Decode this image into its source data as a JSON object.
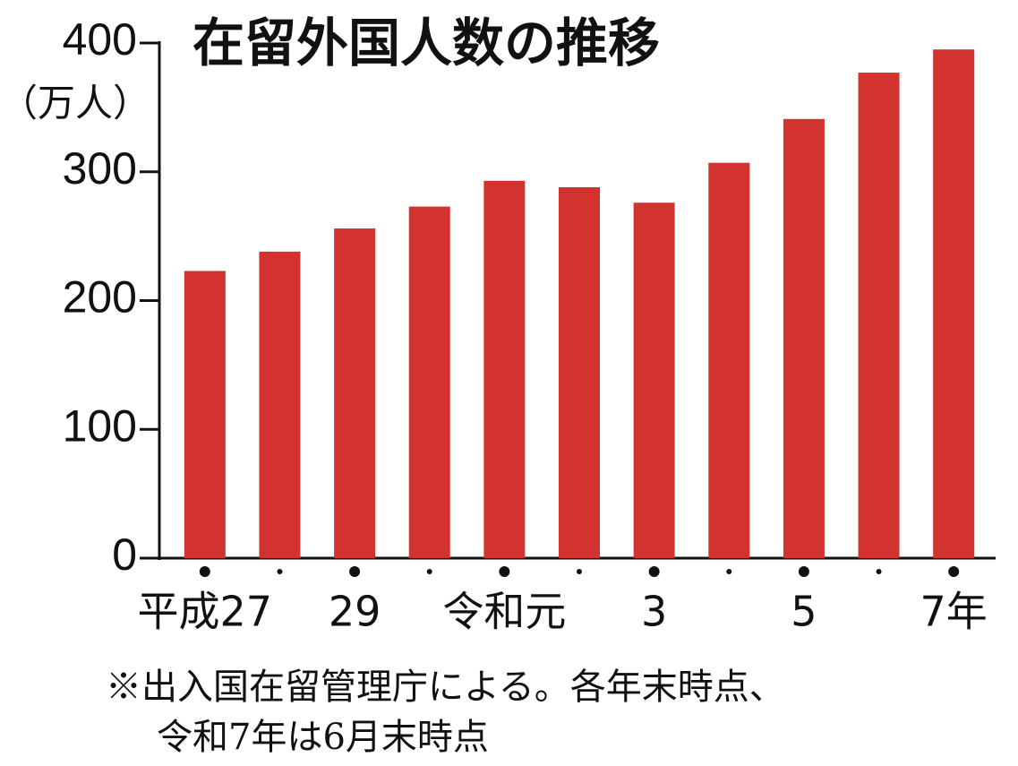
{
  "chart_data": {
    "type": "bar",
    "title": "在留外国人数の推移",
    "y_unit_label": "（万人）",
    "categories": [
      "平成27",
      null,
      "29",
      null,
      "令和元",
      null,
      "3",
      null,
      "5",
      null,
      "7年"
    ],
    "values": [
      223,
      238,
      256,
      273,
      293,
      288,
      276,
      307,
      341,
      377,
      395
    ],
    "color": "#d2332e",
    "ylim": [
      0,
      400
    ],
    "yticks": [
      0,
      100,
      200,
      300,
      400
    ],
    "notes": [
      "※出入国在留管理庁による。各年末時点、",
      "令和7年は6月末時点"
    ]
  }
}
